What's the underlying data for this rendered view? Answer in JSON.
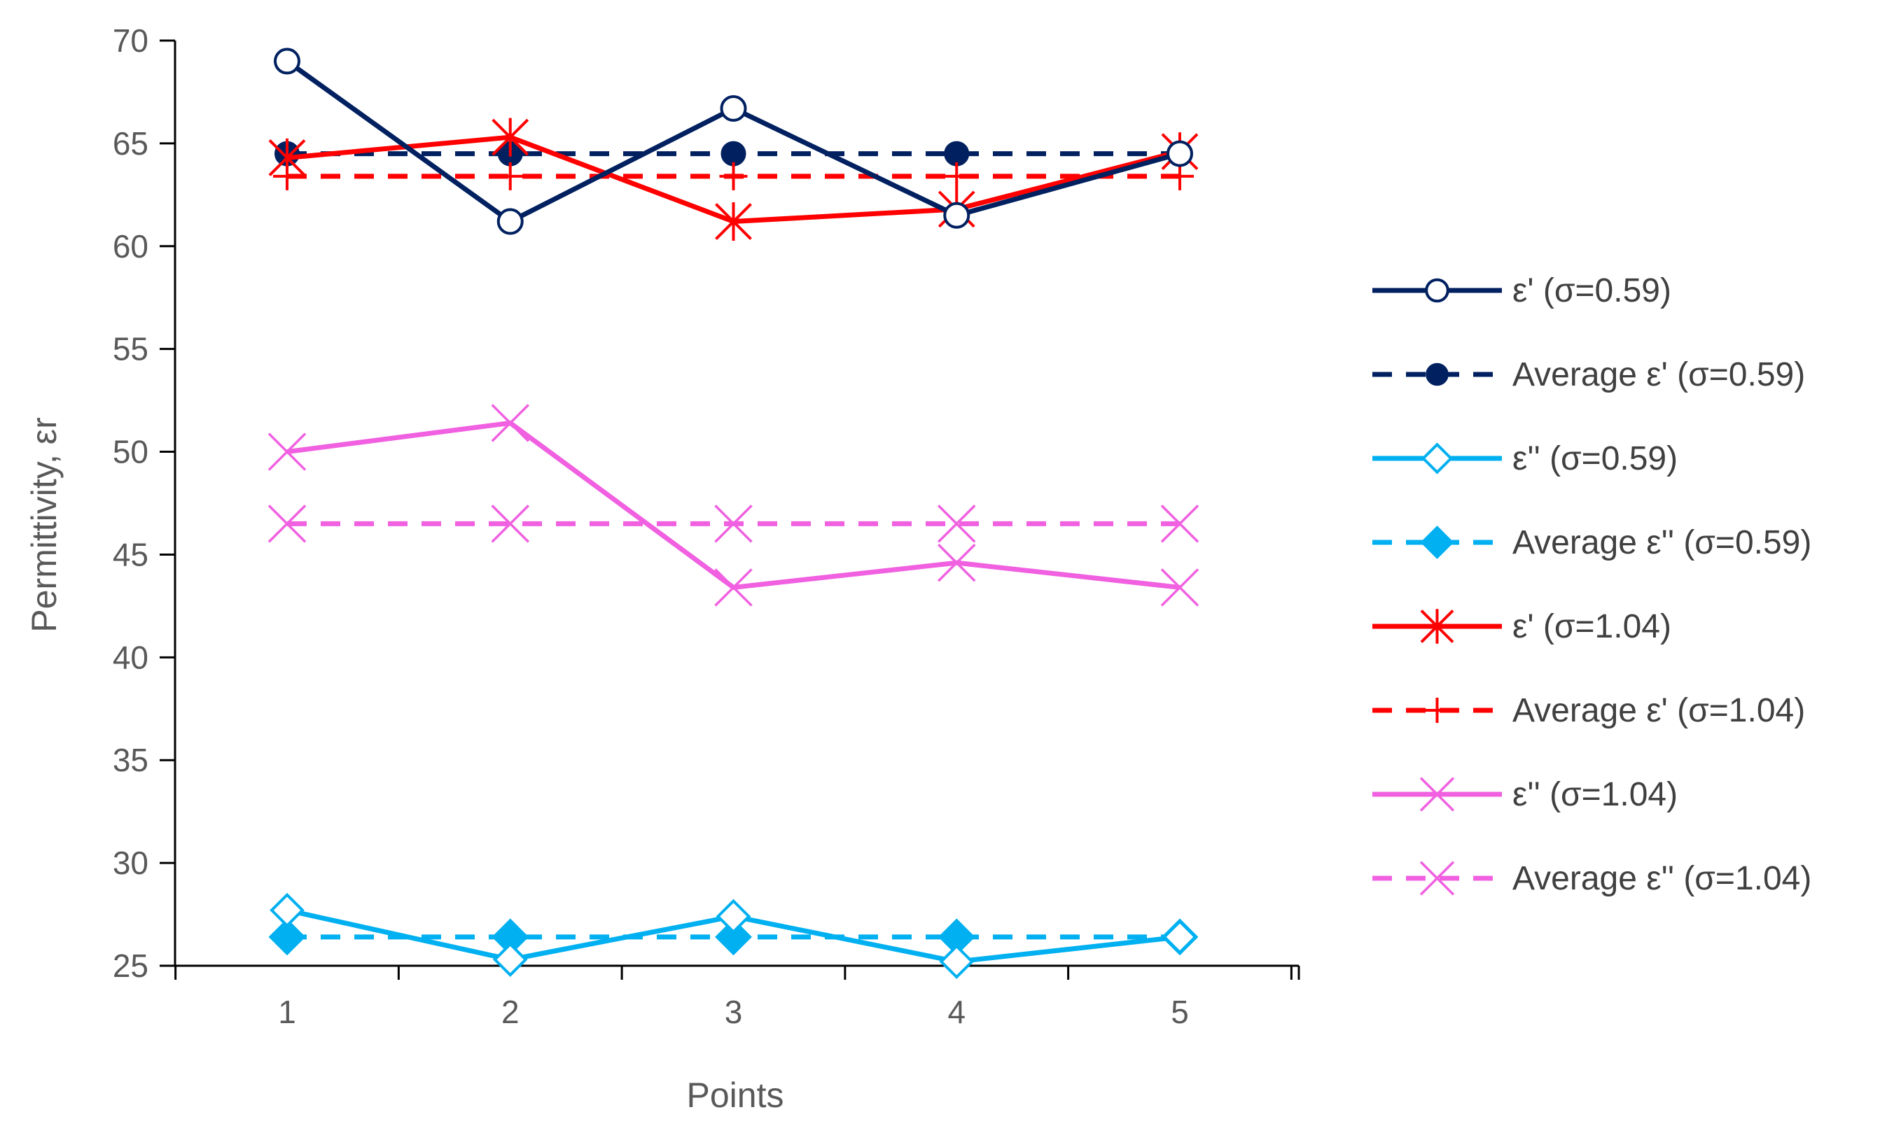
{
  "chart_data": {
    "type": "line",
    "title": "",
    "xlabel": "Points",
    "ylabel": "Permittivity, εr",
    "x": [
      1,
      2,
      3,
      4,
      5
    ],
    "x_tick_labels": [
      "1",
      "2",
      "3",
      "4",
      "5"
    ],
    "ylim": [
      25,
      70
    ],
    "y_ticks": [
      25,
      30,
      35,
      40,
      45,
      50,
      55,
      60,
      65,
      70
    ],
    "grid": false,
    "legend_position": "right",
    "series": [
      {
        "name": "ε' (σ=0.59)",
        "values": [
          69.0,
          61.2,
          66.7,
          61.5,
          64.5
        ],
        "color": "#002060",
        "dash": "solid",
        "marker": "open-circle"
      },
      {
        "name": "Average ε' (σ=0.59)",
        "values": [
          64.5,
          64.5,
          64.5,
          64.5,
          64.5
        ],
        "color": "#002060",
        "dash": "dashed",
        "marker": "filled-circle"
      },
      {
        "name": "ε'' (σ=0.59)",
        "values": [
          27.7,
          25.3,
          27.4,
          25.2,
          26.4
        ],
        "color": "#00B0F0",
        "dash": "solid",
        "marker": "open-diamond"
      },
      {
        "name": "Average ε'' (σ=0.59)",
        "values": [
          26.4,
          26.4,
          26.4,
          26.4,
          26.4
        ],
        "color": "#00B0F0",
        "dash": "dashed",
        "marker": "filled-diamond"
      },
      {
        "name": "ε' (σ=1.04)",
        "values": [
          64.3,
          65.3,
          61.2,
          61.8,
          64.6
        ],
        "color": "#FF0000",
        "dash": "solid",
        "marker": "star"
      },
      {
        "name": "Average ε' (σ=1.04)",
        "values": [
          63.4,
          63.4,
          63.4,
          63.4,
          63.4
        ],
        "color": "#FF0000",
        "dash": "dashed",
        "marker": "plus"
      },
      {
        "name": "ε'' (σ=1.04)",
        "values": [
          50.0,
          51.4,
          43.4,
          44.6,
          43.4
        ],
        "color": "#F060E0",
        "dash": "solid",
        "marker": "x"
      },
      {
        "name": "Average ε'' (σ=1.04)",
        "values": [
          46.5,
          46.5,
          46.5,
          46.5,
          46.5
        ],
        "color": "#F060E0",
        "dash": "dashed",
        "marker": "x"
      }
    ]
  }
}
